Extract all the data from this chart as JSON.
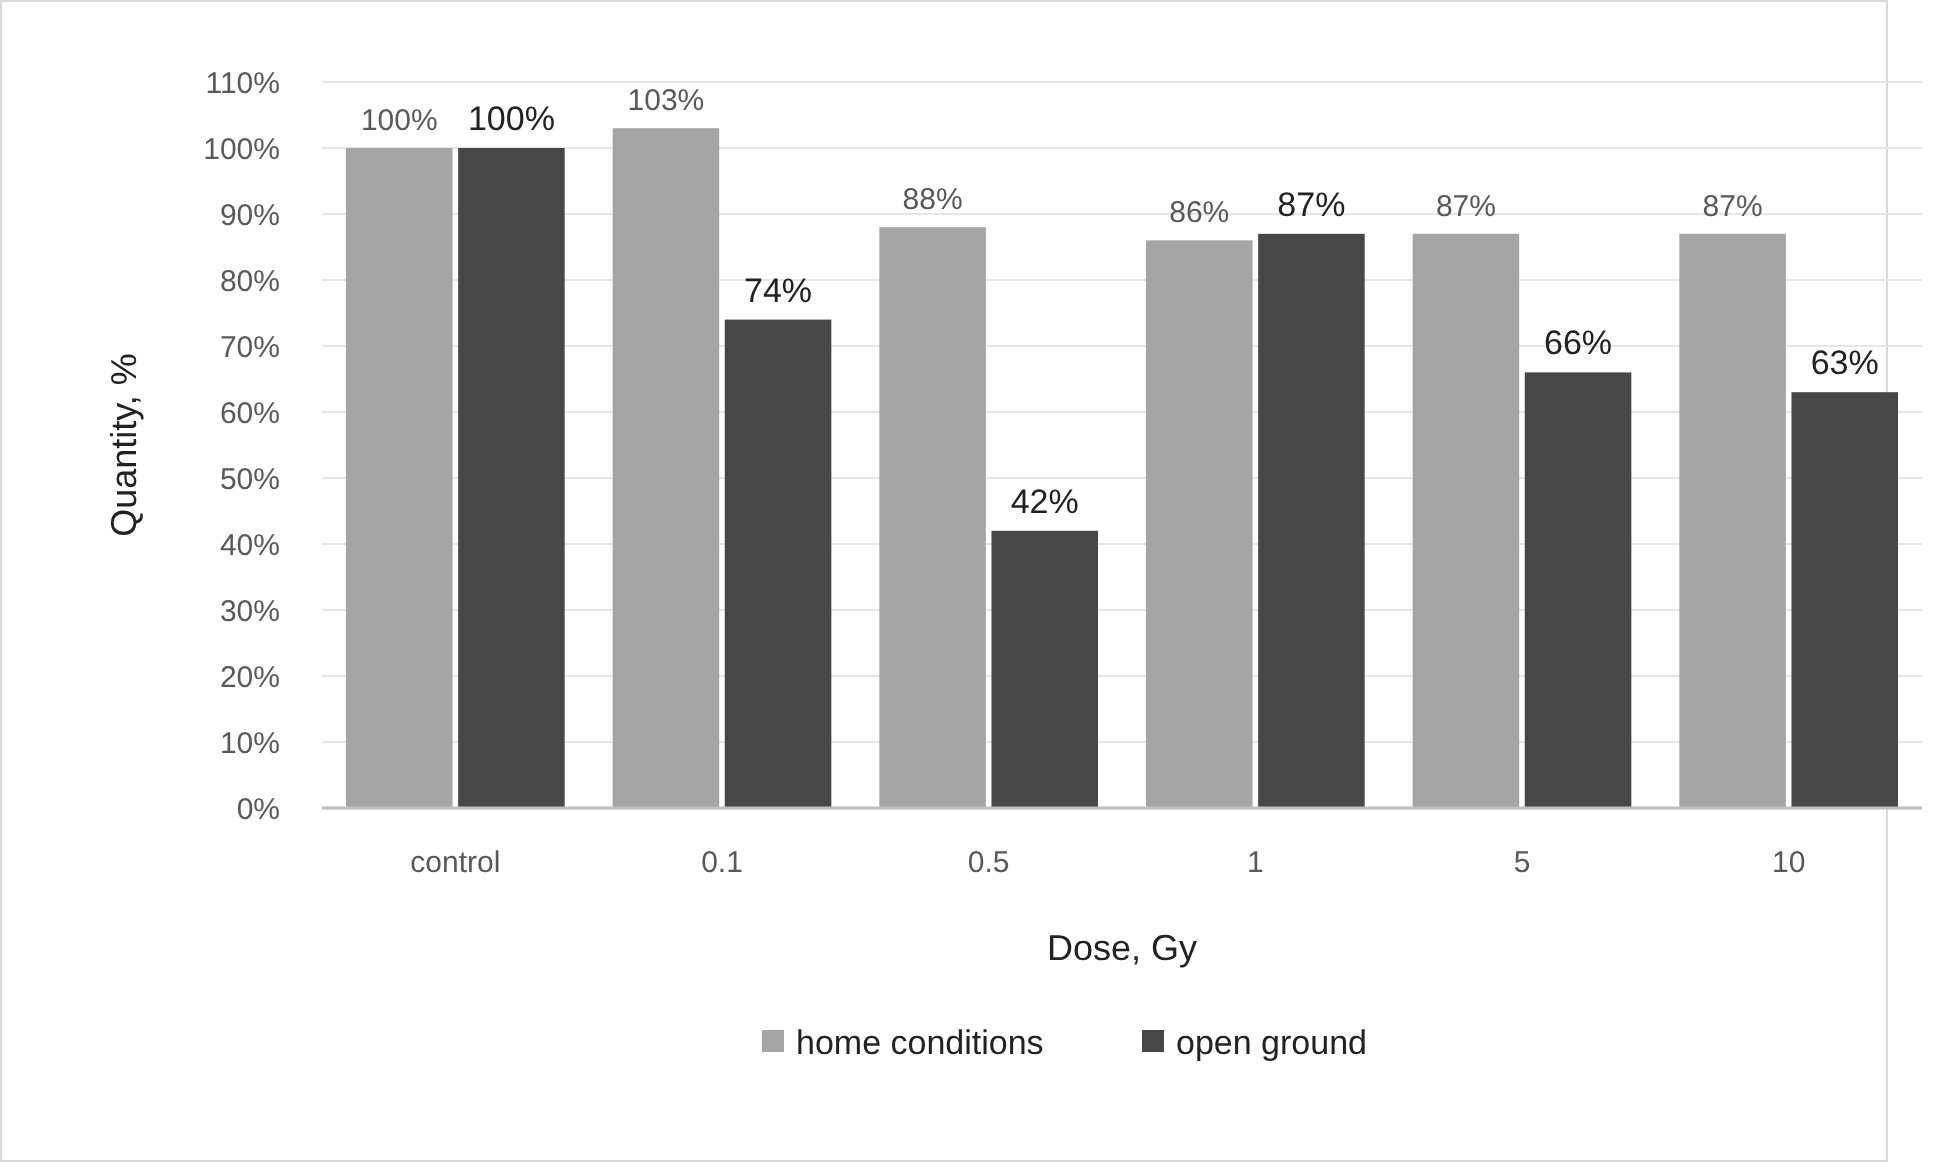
{
  "chart_data": {
    "type": "bar",
    "xlabel": "Dose, Gy",
    "ylabel": "Quantity, %",
    "categories": [
      "control",
      "0.1",
      "0.5",
      "1",
      "5",
      "10"
    ],
    "series": [
      {
        "name": "home conditions",
        "color": "#a5a5a5",
        "values": [
          100,
          103,
          88,
          86,
          87,
          87
        ],
        "value_labels": [
          "100%",
          "103%",
          "88%",
          "86%",
          "87%",
          "87%"
        ]
      },
      {
        "name": "open ground",
        "color": "#474747",
        "values": [
          100,
          74,
          42,
          87,
          66,
          63
        ],
        "value_labels": [
          "100%",
          "74%",
          "42%",
          "87%",
          "66%",
          "63%"
        ]
      }
    ],
    "ylim": [
      0,
      110
    ],
    "yticks": [
      {
        "value": 0,
        "label": "0%"
      },
      {
        "value": 10,
        "label": "10%"
      },
      {
        "value": 20,
        "label": "20%"
      },
      {
        "value": 30,
        "label": "30%"
      },
      {
        "value": 40,
        "label": "40%"
      },
      {
        "value": 50,
        "label": "50%"
      },
      {
        "value": 60,
        "label": "60%"
      },
      {
        "value": 70,
        "label": "70%"
      },
      {
        "value": 80,
        "label": "80%"
      },
      {
        "value": 90,
        "label": "90%"
      },
      {
        "value": 100,
        "label": "100%"
      },
      {
        "value": 110,
        "label": "110%"
      }
    ],
    "grid": "y",
    "legend": "bottom"
  }
}
